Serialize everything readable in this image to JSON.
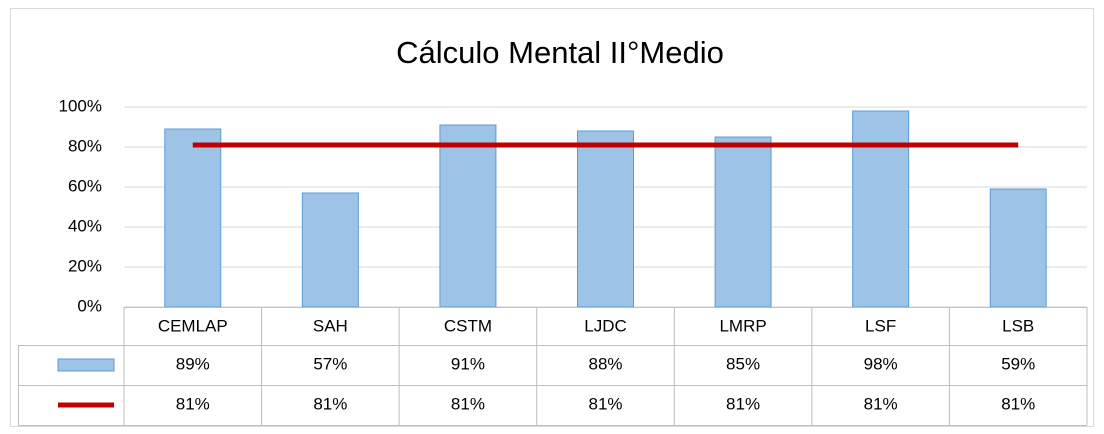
{
  "chart_data": {
    "type": "bar",
    "title": "Cálculo Mental II°Medio",
    "categories": [
      "CEMLAP",
      "SAH",
      "CSTM",
      "LJDC",
      "LMRP",
      "LSF",
      "LSB"
    ],
    "series": [
      {
        "type": "bar",
        "color": "#9dc3e6",
        "values": [
          89,
          57,
          91,
          88,
          85,
          98,
          59
        ],
        "value_labels": [
          "89%",
          "57%",
          "91%",
          "88%",
          "85%",
          "98%",
          "59%"
        ]
      },
      {
        "type": "line",
        "color": "#c00000",
        "values": [
          81,
          81,
          81,
          81,
          81,
          81,
          81
        ],
        "value_labels": [
          "81%",
          "81%",
          "81%",
          "81%",
          "81%",
          "81%",
          "81%"
        ]
      }
    ],
    "ylim": [
      0,
      100
    ],
    "yticks": [
      {
        "value": 0,
        "label": "0%"
      },
      {
        "value": 20,
        "label": "20%"
      },
      {
        "value": 40,
        "label": "40%"
      },
      {
        "value": 60,
        "label": "60%"
      },
      {
        "value": 80,
        "label": "80%"
      },
      {
        "value": 100,
        "label": "100%"
      }
    ],
    "grid": true
  }
}
